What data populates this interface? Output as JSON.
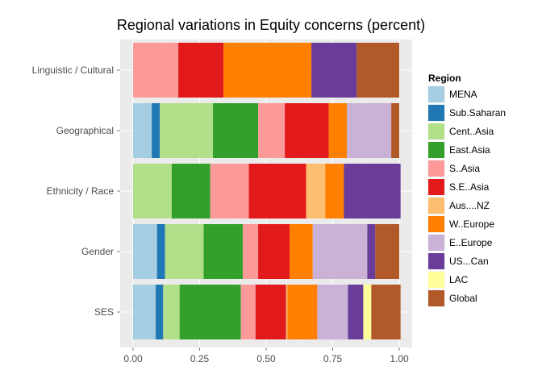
{
  "chart_data": {
    "type": "bar",
    "orientation": "horizontal",
    "stacked": true,
    "title": "Regional variations in Equity concerns (percent)",
    "xlabel": "",
    "ylabel": "",
    "xlim": [
      0,
      1
    ],
    "xticks": [
      "0.00",
      "0.25",
      "0.50",
      "0.75",
      "1.00"
    ],
    "xtick_values": [
      0,
      0.25,
      0.5,
      0.75,
      1.0
    ],
    "grid": true,
    "legend_position": "right",
    "legend_title": "Region",
    "categories": [
      "Linguistic / Cultural",
      "Geographical",
      "Ethnicity / Race",
      "Gender",
      "SES"
    ],
    "series": [
      {
        "name": "MENA",
        "color": "#A6CEE3",
        "values": [
          0.0,
          0.07,
          0.0,
          0.09,
          0.085
        ]
      },
      {
        "name": "Sub.Saharan",
        "color": "#1F78B4",
        "values": [
          0.0,
          0.03,
          0.0,
          0.03,
          0.028
        ]
      },
      {
        "name": "Cent..Asia",
        "color": "#B2DF8A",
        "values": [
          0.0,
          0.2,
          0.145,
          0.145,
          0.062
        ]
      },
      {
        "name": "East.Asia",
        "color": "#33A02C",
        "values": [
          0.0,
          0.17,
          0.145,
          0.147,
          0.23
        ]
      },
      {
        "name": "S..Asia",
        "color": "#FB9A99",
        "values": [
          0.17,
          0.1,
          0.145,
          0.058,
          0.055
        ]
      },
      {
        "name": "S.E..Asia",
        "color": "#E31A1C",
        "values": [
          0.17,
          0.165,
          0.215,
          0.118,
          0.115
        ]
      },
      {
        "name": "Aus....NZ",
        "color": "#FDBF6F",
        "values": [
          0.0,
          0.0,
          0.072,
          0.0,
          0.005
        ]
      },
      {
        "name": "W..Europe",
        "color": "#FF7F00",
        "values": [
          0.33,
          0.068,
          0.07,
          0.087,
          0.112
        ]
      },
      {
        "name": "E..Europe",
        "color": "#CAB2D6",
        "values": [
          0.0,
          0.167,
          0.0,
          0.205,
          0.115
        ]
      },
      {
        "name": "US...Can",
        "color": "#6A3D9A",
        "values": [
          0.17,
          0.0,
          0.213,
          0.03,
          0.058
        ]
      },
      {
        "name": "LAC",
        "color": "#FFFF99",
        "values": [
          0.0,
          0.0,
          0.0,
          0.0,
          0.03
        ]
      },
      {
        "name": "Global",
        "color": "#B15928",
        "values": [
          0.16,
          0.03,
          0.0,
          0.09,
          0.11
        ]
      }
    ]
  }
}
